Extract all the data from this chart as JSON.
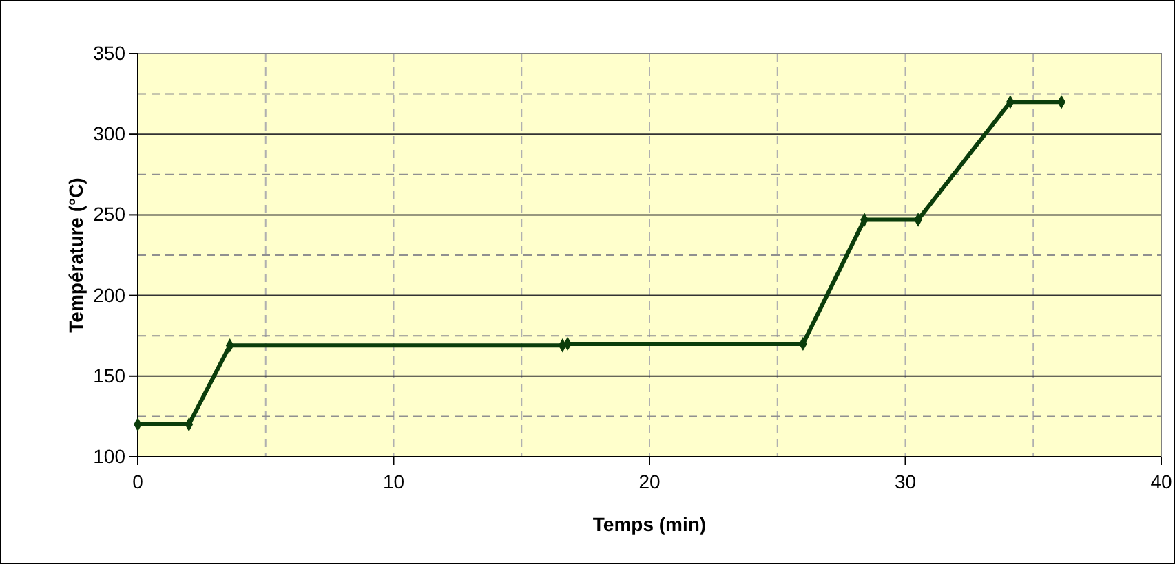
{
  "chart_data": {
    "type": "line",
    "xlabel": "Temps (min)",
    "ylabel": "Température (°C)",
    "x": [
      0,
      2,
      3.6,
      16.6,
      16.8,
      26,
      28.4,
      30.5,
      34.1,
      36.1
    ],
    "series": [
      {
        "color": "#0b3d0b",
        "values": [
          120,
          120,
          169,
          169,
          170,
          170,
          247,
          247,
          320,
          320
        ]
      }
    ],
    "xlim": [
      0,
      40
    ],
    "xticks": [
      0,
      10,
      20,
      30,
      40
    ],
    "ylim": [
      100,
      350
    ],
    "yticks": [
      100,
      150,
      200,
      250,
      300,
      350
    ],
    "grid": true,
    "marker": "diamond",
    "line_style": "solid"
  }
}
